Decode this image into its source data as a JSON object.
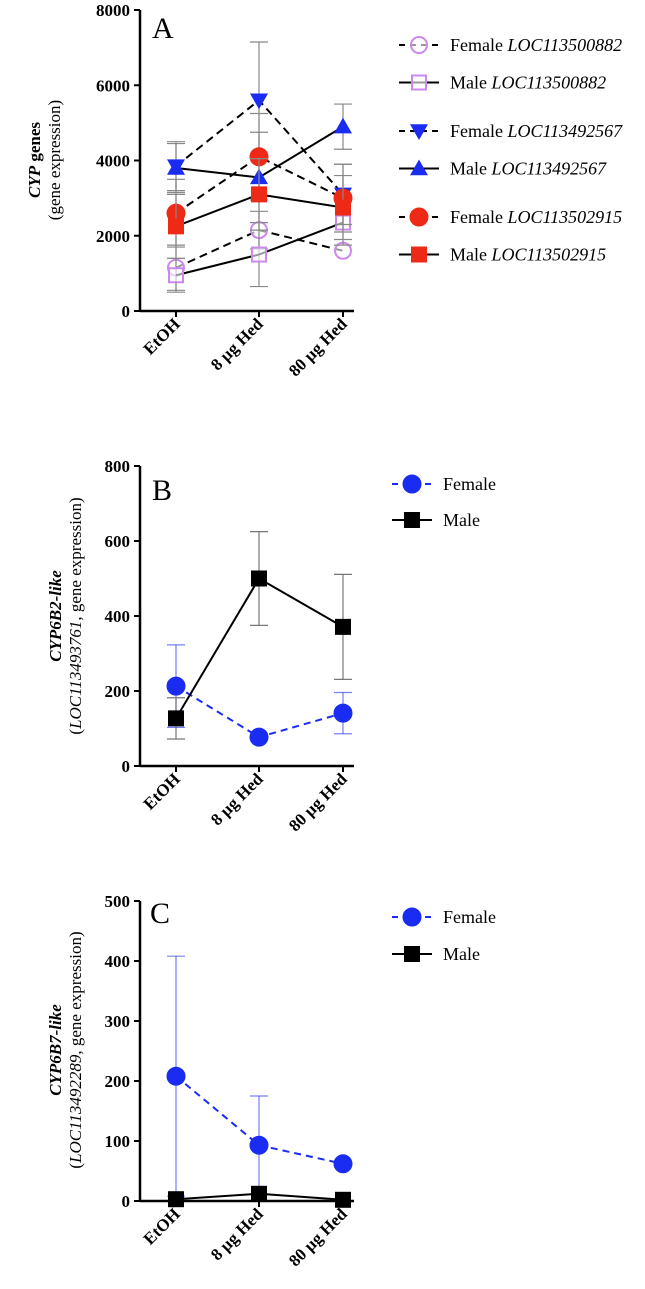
{
  "chart_data": [
    {
      "panel": "A",
      "type": "line",
      "categories": [
        "EtOH",
        "8 µg Hed",
        "80 µg Hed"
      ],
      "ylabel_main": "CYP",
      "ylabel_main_suffix": " genes",
      "ylabel_sub": "(gene expression)",
      "ylim": [
        0,
        8000
      ],
      "yticks": [
        "0",
        "2000",
        "4000",
        "6000",
        "8000"
      ],
      "ytick_values": [
        0,
        2000,
        4000,
        6000,
        8000
      ],
      "series": [
        {
          "prefix": "Female ",
          "gene": "LOC113500882",
          "color": "#cc88ee",
          "marker": "circle-open",
          "dash": true,
          "values": [
            1150,
            2150,
            1600
          ],
          "err": [
            600,
            500,
            0
          ]
        },
        {
          "prefix": "Male ",
          "gene": "LOC113500882",
          "color": "#cc88ee",
          "marker": "square-open",
          "dash": false,
          "values": [
            950,
            1500,
            2350
          ],
          "err": [
            450,
            850,
            600
          ]
        },
        {
          "prefix": "Female ",
          "gene": "LOC113492567",
          "color": "#1a2cf2",
          "marker": "triangle-down",
          "dash": true,
          "values": [
            3850,
            5600,
            3100
          ],
          "err": [
            650,
            1550,
            800
          ]
        },
        {
          "prefix": "Male ",
          "gene": "LOC113492567",
          "color": "#1a2cf2",
          "marker": "triangle-up",
          "dash": false,
          "values": [
            3800,
            3550,
            4900
          ],
          "err": [
            650,
            1200,
            600
          ]
        },
        {
          "prefix": "Female ",
          "gene": "LOC113502915",
          "color": "#ee2a16",
          "marker": "circle",
          "dash": true,
          "values": [
            2600,
            4100,
            3000
          ],
          "err": [
            900,
            1150,
            900
          ]
        },
        {
          "prefix": "Male ",
          "gene": "LOC113502915",
          "color": "#ee2a16",
          "marker": "square",
          "dash": false,
          "values": [
            2250,
            3100,
            2750
          ],
          "err": [
            850,
            950,
            850
          ]
        }
      ]
    },
    {
      "panel": "B",
      "type": "line",
      "categories": [
        "EtOH",
        "8 µg Hed",
        "80 µg Hed"
      ],
      "ylabel_main": "CYP6B2-like",
      "ylabel_sub_pre": "(",
      "ylabel_sub_it": "LOC113493761",
      "ylabel_sub_post": ", gene expression)",
      "ylim": [
        0,
        800
      ],
      "yticks": [
        "0",
        "200",
        "400",
        "600",
        "800"
      ],
      "ytick_values": [
        0,
        200,
        400,
        600,
        800
      ],
      "series": [
        {
          "name": "Female",
          "color": "#1a2cf2",
          "marker": "circle",
          "dash": true,
          "values": [
            213,
            77,
            141
          ],
          "err": [
            110,
            0,
            55
          ]
        },
        {
          "name": "Male",
          "color": "#000000",
          "marker": "square",
          "dash": false,
          "values": [
            127,
            500,
            371
          ],
          "err": [
            55,
            125,
            140
          ]
        }
      ]
    },
    {
      "panel": "C",
      "type": "line",
      "categories": [
        "EtOH",
        "8 µg Hed",
        "80 µg Hed"
      ],
      "ylabel_main": "CYP6B7-like",
      "ylabel_sub_pre": "(",
      "ylabel_sub_it": "LOC113492289",
      "ylabel_sub_post": ", gene expression)",
      "ylim": [
        0,
        500
      ],
      "yticks": [
        "0",
        "100",
        "200",
        "300",
        "400",
        "500"
      ],
      "ytick_values": [
        0,
        100,
        200,
        300,
        400,
        500
      ],
      "series": [
        {
          "name": "Female",
          "color": "#1a2cf2",
          "marker": "circle",
          "dash": true,
          "values": [
            208,
            93,
            62
          ],
          "err": [
            200,
            82,
            0
          ]
        },
        {
          "name": "Male",
          "color": "#000000",
          "marker": "square",
          "dash": false,
          "values": [
            3,
            12,
            2
          ],
          "err": [
            0,
            0,
            0
          ]
        }
      ]
    }
  ]
}
